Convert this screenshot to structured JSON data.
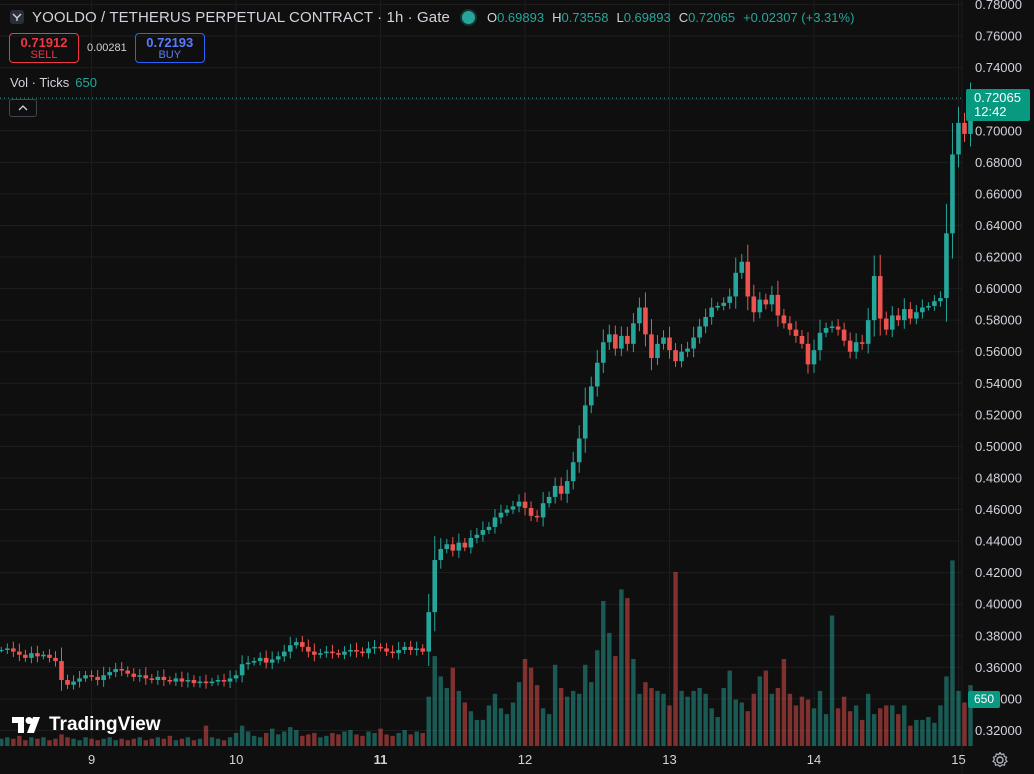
{
  "header": {
    "title": "YOOLDO / TETHERUS PERPETUAL CONTRACT · 1h · Gate",
    "ohlc": [
      {
        "k": "O",
        "v": "0.69893"
      },
      {
        "k": "H",
        "v": "0.73558"
      },
      {
        "k": "L",
        "v": "0.69893"
      },
      {
        "k": "C",
        "v": "0.72065"
      },
      {
        "k": "",
        "v": "+0.02307 (+3.31%)"
      }
    ]
  },
  "trade": {
    "sell_price": "0.71912",
    "sell_label": "SELL",
    "spread": "0.00281",
    "buy_price": "0.72193",
    "buy_label": "BUY"
  },
  "volume_indicator": {
    "label": "Vol · Ticks",
    "value": "650"
  },
  "logo": {
    "text": "TradingView"
  },
  "price_tag": {
    "price": "0.72065",
    "countdown": "12:42"
  },
  "volume_tag": "650",
  "colors": {
    "up": "#26a69a",
    "down": "#ef5350",
    "bg": "#0f0f0f",
    "grid": "#1e1e1e"
  },
  "chart_data": {
    "type": "candlestick",
    "y_range": [
      0.31,
      0.785
    ],
    "y_ticks": [
      "0.78000",
      "0.76000",
      "0.74000",
      "0.72000",
      "0.70000",
      "0.68000",
      "0.66000",
      "0.64000",
      "0.62000",
      "0.60000",
      "0.58000",
      "0.56000",
      "0.54000",
      "0.52000",
      "0.50000",
      "0.48000",
      "0.46000",
      "0.44000",
      "0.42000",
      "0.40000",
      "0.38000",
      "0.36000",
      "0.34000",
      "0.32000"
    ],
    "x_ticks": [
      {
        "label": "9",
        "bar": 15,
        "bold": false
      },
      {
        "label": "10",
        "bar": 39,
        "bold": false
      },
      {
        "label": "11",
        "bar": 63,
        "bold": true
      },
      {
        "label": "12",
        "bar": 87,
        "bold": false
      },
      {
        "label": "13",
        "bar": 111,
        "bold": false
      },
      {
        "label": "14",
        "bar": 135,
        "bold": false
      },
      {
        "label": "15",
        "bar": 159,
        "bold": false
      }
    ],
    "last_price": 0.72065,
    "closes": [
      0.371,
      0.372,
      0.37,
      0.368,
      0.366,
      0.369,
      0.367,
      0.368,
      0.366,
      0.364,
      0.352,
      0.349,
      0.351,
      0.353,
      0.355,
      0.354,
      0.352,
      0.355,
      0.357,
      0.359,
      0.358,
      0.356,
      0.354,
      0.355,
      0.353,
      0.352,
      0.354,
      0.352,
      0.351,
      0.353,
      0.351,
      0.352,
      0.35,
      0.351,
      0.35,
      0.351,
      0.352,
      0.351,
      0.353,
      0.355,
      0.362,
      0.363,
      0.364,
      0.366,
      0.363,
      0.365,
      0.367,
      0.37,
      0.374,
      0.376,
      0.373,
      0.37,
      0.368,
      0.369,
      0.37,
      0.369,
      0.368,
      0.37,
      0.371,
      0.37,
      0.369,
      0.372,
      0.373,
      0.372,
      0.37,
      0.369,
      0.371,
      0.373,
      0.371,
      0.372,
      0.37,
      0.395,
      0.428,
      0.435,
      0.438,
      0.434,
      0.439,
      0.436,
      0.442,
      0.444,
      0.447,
      0.449,
      0.455,
      0.458,
      0.46,
      0.462,
      0.465,
      0.461,
      0.456,
      0.455,
      0.464,
      0.468,
      0.475,
      0.47,
      0.478,
      0.49,
      0.505,
      0.526,
      0.538,
      0.553,
      0.566,
      0.571,
      0.562,
      0.57,
      0.565,
      0.578,
      0.588,
      0.571,
      0.556,
      0.565,
      0.569,
      0.561,
      0.554,
      0.56,
      0.562,
      0.569,
      0.576,
      0.582,
      0.588,
      0.589,
      0.591,
      0.595,
      0.61,
      0.617,
      0.595,
      0.585,
      0.593,
      0.59,
      0.596,
      0.583,
      0.578,
      0.574,
      0.57,
      0.565,
      0.552,
      0.561,
      0.572,
      0.575,
      0.576,
      0.574,
      0.567,
      0.56,
      0.566,
      0.565,
      0.58,
      0.608,
      0.581,
      0.574,
      0.583,
      0.58,
      0.587,
      0.581,
      0.585,
      0.588,
      0.589,
      0.592,
      0.594,
      0.635,
      0.685,
      0.705,
      0.698,
      0.72065
    ],
    "volumes": [
      5,
      6,
      5,
      7,
      4,
      6,
      5,
      6,
      4,
      5,
      8,
      6,
      5,
      4,
      6,
      5,
      4,
      5,
      6,
      4,
      5,
      4,
      5,
      6,
      4,
      5,
      6,
      5,
      7,
      4,
      5,
      6,
      4,
      5,
      14,
      6,
      5,
      4,
      6,
      9,
      14,
      10,
      7,
      6,
      9,
      12,
      8,
      10,
      13,
      11,
      7,
      8,
      9,
      6,
      7,
      9,
      8,
      10,
      11,
      8,
      7,
      10,
      9,
      12,
      8,
      7,
      9,
      11,
      8,
      10,
      9,
      34,
      62,
      48,
      40,
      54,
      38,
      30,
      24,
      18,
      18,
      28,
      36,
      26,
      22,
      30,
      44,
      60,
      54,
      42,
      26,
      22,
      56,
      40,
      34,
      38,
      36,
      56,
      44,
      66,
      100,
      78,
      62,
      108,
      102,
      60,
      36,
      44,
      40,
      38,
      36,
      28,
      120,
      38,
      34,
      38,
      40,
      36,
      26,
      20,
      40,
      52,
      32,
      30,
      24,
      36,
      48,
      52,
      36,
      40,
      60,
      36,
      28,
      34,
      32,
      26,
      38,
      22,
      90,
      26,
      34,
      24,
      28,
      18,
      36,
      22,
      26,
      28,
      28,
      22,
      28,
      14,
      18,
      18,
      20,
      16,
      28,
      48,
      128,
      38,
      30,
      42
    ]
  }
}
